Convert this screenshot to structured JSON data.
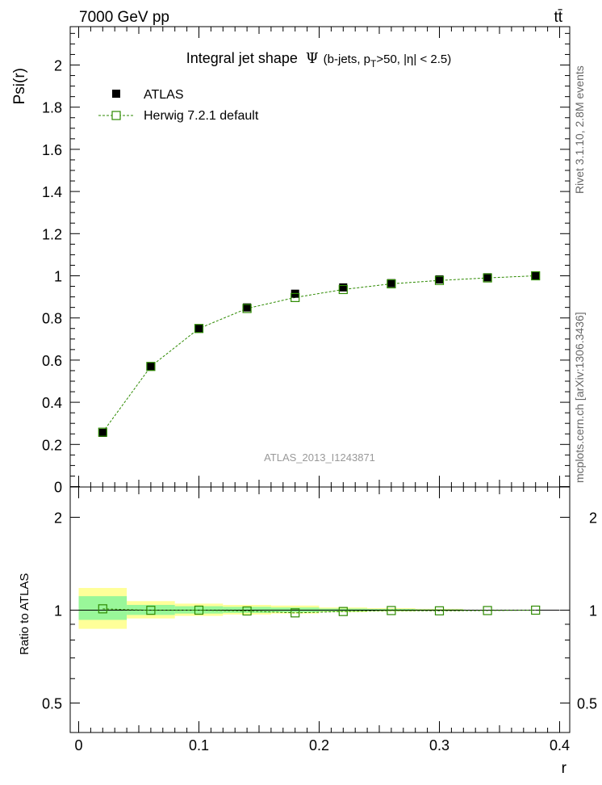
{
  "header": {
    "energy_label": "7000 GeV pp",
    "process_label": "tt̄"
  },
  "side_labels": {
    "rivet": "Rivet 3.1.10,  2.8M events",
    "mcplots": "mcplots.cern.ch [arXiv:1306.3436]"
  },
  "colors": {
    "atlas_marker": "#000000",
    "herwig_line": "#2d8a00",
    "band_inner": "#99f799",
    "band_outer": "#ffff99",
    "watermark": "#999999"
  },
  "chart_data": [
    {
      "type": "scatter",
      "panel": "main",
      "title": "Integral jet shape  Ψ (b-jets, pT>50, |η| < 2.5)",
      "title_main": "Integral jet shape",
      "title_psi": "Ψ",
      "title_sub_pre": "(b-jets, p",
      "title_sub_T": "T",
      "title_sub_post": ">50, |η| < 2.5)",
      "watermark": "ATLAS_2013_I1243871",
      "xlabel": "r",
      "ylabel": "Psi(r)",
      "xlim": [
        0,
        0.4
      ],
      "ylim": [
        0,
        2.18
      ],
      "yticks": [
        "0",
        "0.2",
        "0.4",
        "0.6",
        "0.8",
        "1",
        "1.2",
        "1.4",
        "1.6",
        "1.8",
        "2"
      ],
      "xticks": [
        "0",
        "0.1",
        "0.2",
        "0.3",
        "0.4"
      ],
      "legend": {
        "position": "top-left",
        "entries": [
          "ATLAS",
          "Herwig 7.2.1 default"
        ]
      },
      "series": [
        {
          "name": "ATLAS",
          "marker": "filled-square",
          "x": [
            0.02,
            0.06,
            0.1,
            0.14,
            0.18,
            0.22,
            0.26,
            0.3,
            0.34,
            0.38
          ],
          "y": [
            0.255,
            0.57,
            0.75,
            0.85,
            0.915,
            0.945,
            0.965,
            0.983,
            0.993,
            1.0
          ]
        },
        {
          "name": "Herwig 7.2.1 default",
          "marker": "open-square",
          "line": "dashed",
          "x": [
            0.02,
            0.06,
            0.1,
            0.14,
            0.18,
            0.22,
            0.26,
            0.3,
            0.34,
            0.38
          ],
          "y": [
            0.258,
            0.57,
            0.75,
            0.845,
            0.897,
            0.935,
            0.962,
            0.978,
            0.99,
            1.0
          ]
        }
      ]
    },
    {
      "type": "scatter",
      "panel": "ratio",
      "ylabel": "Ratio to ATLAS",
      "xlabel": "r",
      "xlim": [
        0,
        0.4
      ],
      "ylim": [
        0.4,
        2.5
      ],
      "yscale": "log",
      "yticks": [
        "0.5",
        "1",
        "2"
      ],
      "xticks": [
        "0",
        "0.1",
        "0.2",
        "0.3",
        "0.4"
      ],
      "bands": {
        "x_edges": [
          0,
          0.04,
          0.08,
          0.12,
          0.16,
          0.2,
          0.24,
          0.28,
          0.32,
          0.36,
          0.4
        ],
        "outer_lo": [
          0.87,
          0.94,
          0.958,
          0.968,
          0.975,
          0.985,
          0.99,
          0.993,
          1.0,
          1.0
        ],
        "outer_hi": [
          1.18,
          1.07,
          1.05,
          1.04,
          1.035,
          1.02,
          1.015,
          1.01,
          1.0,
          1.0
        ],
        "inner_lo": [
          0.93,
          0.965,
          0.975,
          0.98,
          0.985,
          0.99,
          0.993,
          0.995,
          1.0,
          1.0
        ],
        "inner_hi": [
          1.11,
          1.04,
          1.03,
          1.025,
          1.02,
          1.012,
          1.009,
          1.006,
          1.0,
          1.0
        ]
      },
      "series": [
        {
          "name": "Herwig 7.2.1 default",
          "x": [
            0.02,
            0.06,
            0.1,
            0.14,
            0.18,
            0.22,
            0.26,
            0.3,
            0.34,
            0.38
          ],
          "y": [
            1.01,
            0.999,
            1.0,
            0.994,
            0.98,
            0.99,
            0.997,
            0.995,
            0.997,
            1.0
          ]
        }
      ]
    }
  ]
}
